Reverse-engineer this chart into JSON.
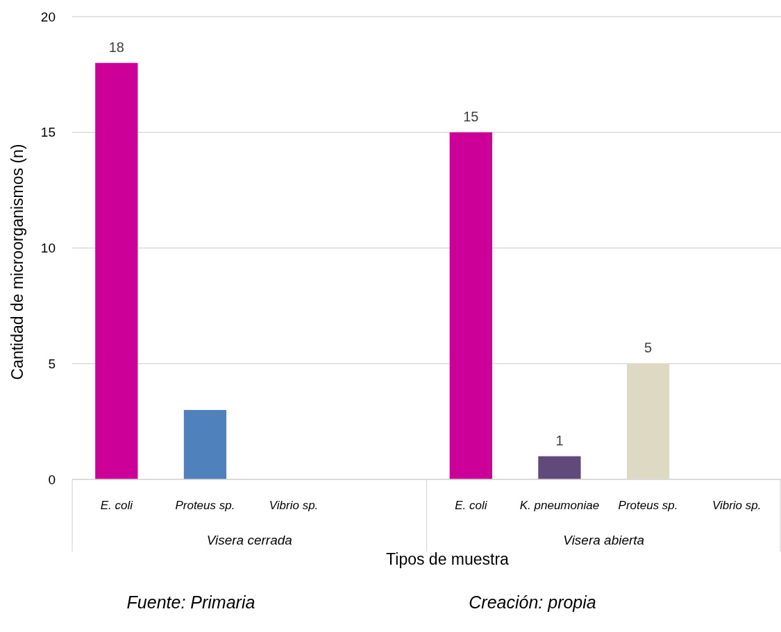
{
  "chart_data": {
    "type": "bar",
    "xlabel": "Tipos de muestra",
    "ylabel": "Cantidad de microorganismos (n)",
    "categories": [
      "E. coli",
      "Proteus sp.",
      "Vibrio sp.",
      null,
      "E. coli",
      "K. pneumoniae",
      "Proteus sp.",
      "Vibrio sp."
    ],
    "values": [
      18,
      3,
      0,
      null,
      15,
      1,
      5,
      0
    ],
    "colors": [
      "#cc0099",
      "#4f81bd",
      "#4f81bd",
      null,
      "#cc0099",
      "#604a7b",
      "#ddd9c3",
      "#ddd9c3"
    ],
    "value_labels": [
      "18",
      null,
      null,
      null,
      "15",
      "1",
      "5",
      null
    ],
    "ylim": [
      0,
      20
    ],
    "yticks": [
      0,
      5,
      10,
      15,
      20
    ],
    "grid": "y",
    "annotations": [
      "Visera cerrada",
      "Visera abierta",
      "Fuente: Primaria",
      "Creación: propia"
    ]
  }
}
